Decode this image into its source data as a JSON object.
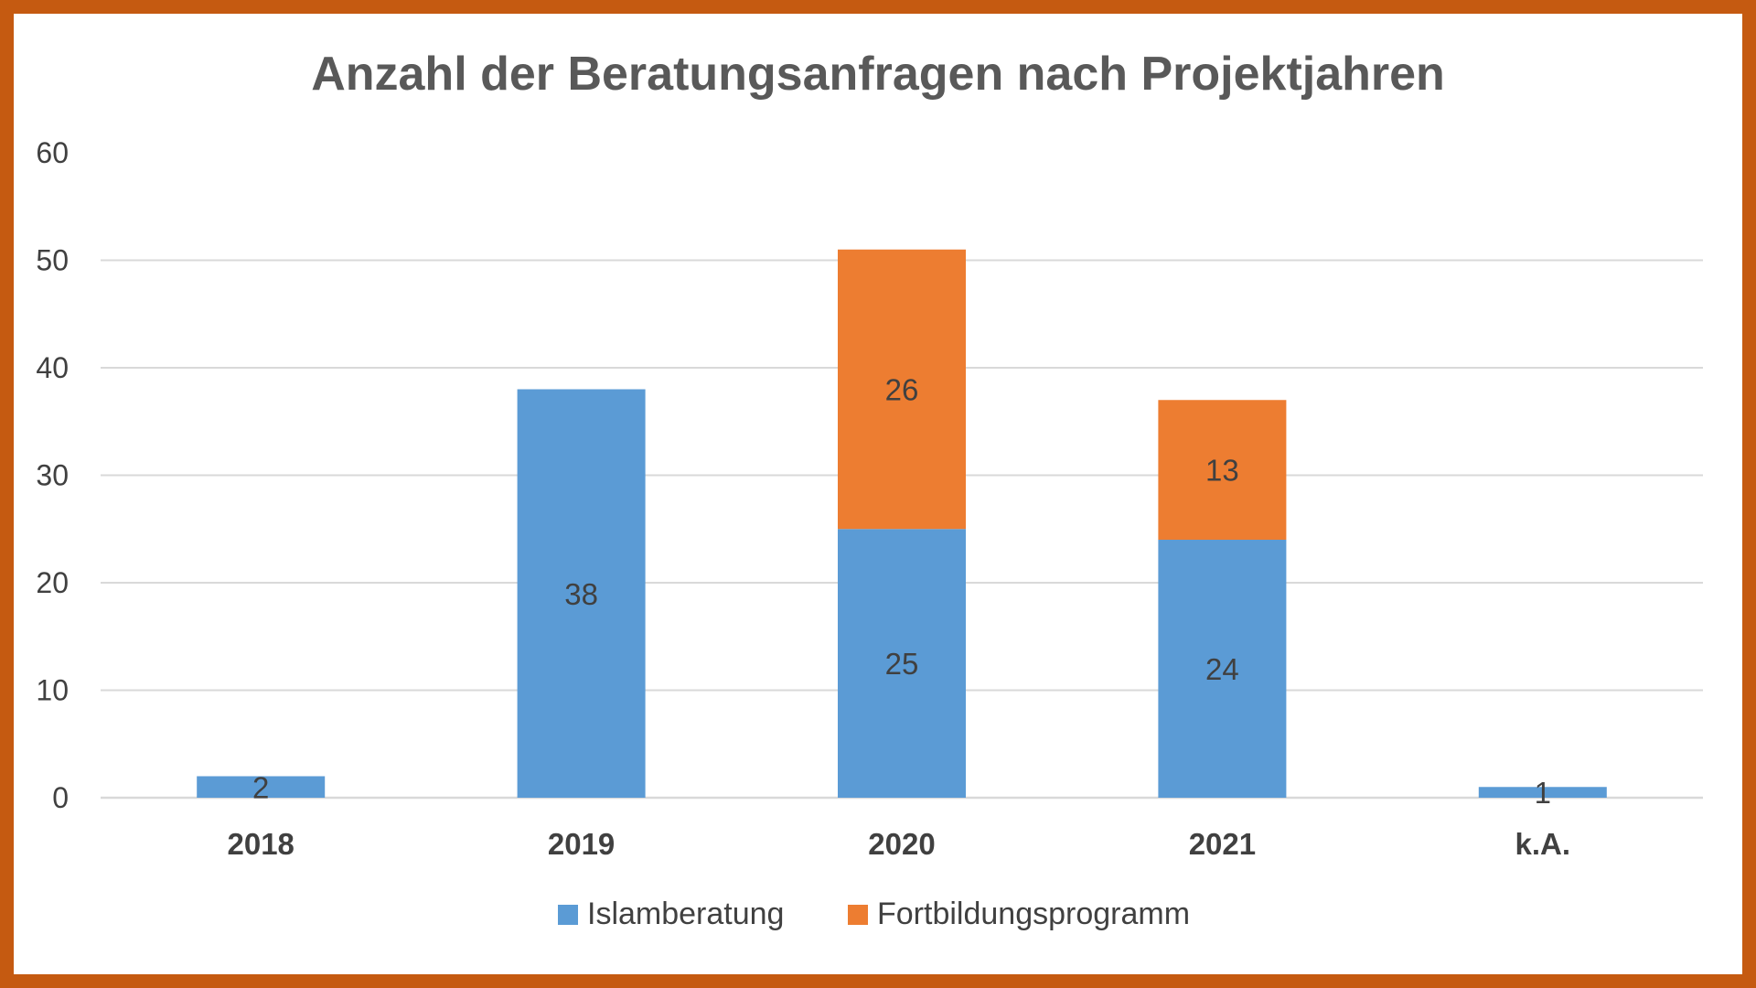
{
  "chart_data": {
    "type": "bar",
    "stacked": true,
    "title": "Anzahl der Beratungsanfragen nach Projektjahren",
    "categories": [
      "2018",
      "2019",
      "2020",
      "2021",
      "k.A."
    ],
    "series": [
      {
        "name": "Islamberatung",
        "color": "#5b9bd5",
        "values": [
          2,
          38,
          25,
          24,
          1
        ]
      },
      {
        "name": "Fortbildungsprogramm",
        "color": "#ed7d31",
        "values": [
          0,
          0,
          26,
          13,
          0
        ]
      }
    ],
    "ylim": [
      0,
      60
    ],
    "yticks": [
      0,
      10,
      20,
      30,
      40,
      50,
      60
    ],
    "grid": true,
    "legend": "bottom",
    "data_labels": true,
    "frame_color": "#c55a11"
  }
}
